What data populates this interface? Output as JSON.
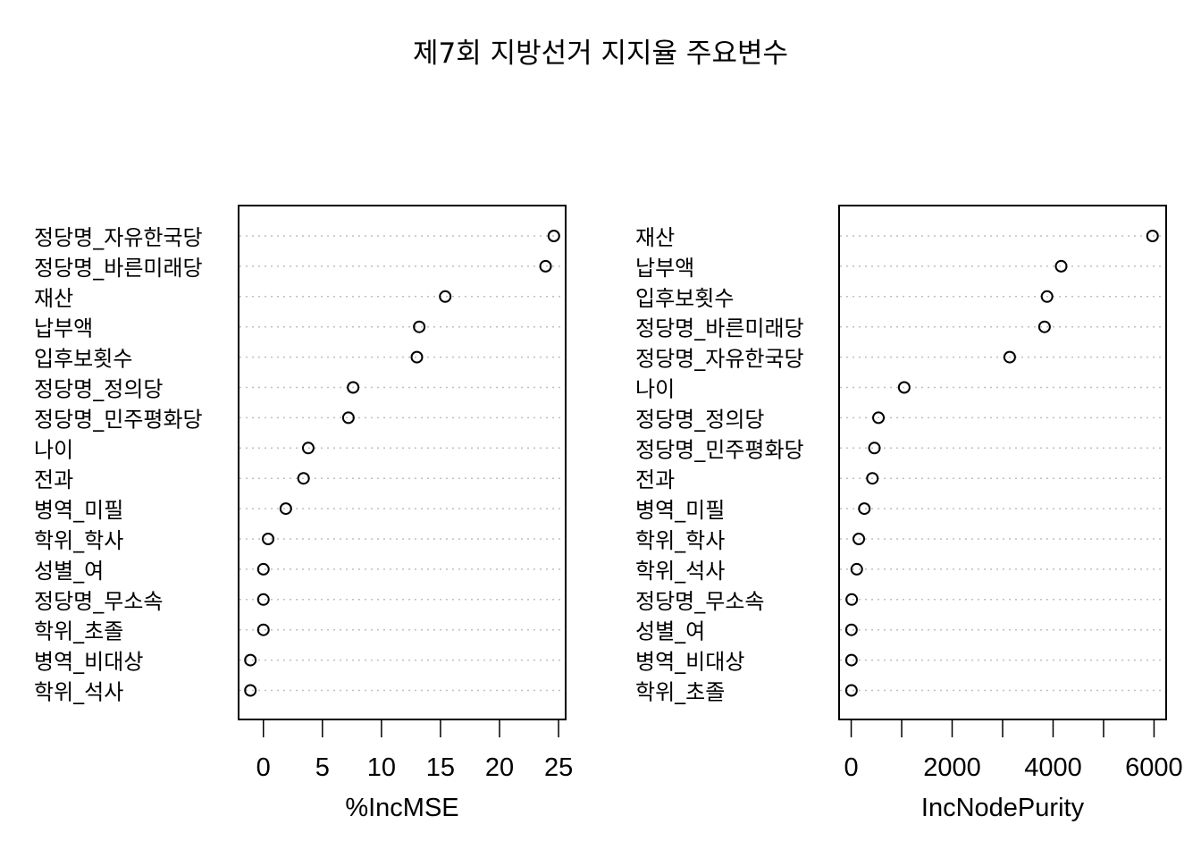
{
  "title": "제7회 지방선거 지지율 주요변수",
  "chart_data": [
    {
      "type": "dotchart",
      "xlabel": "%IncMSE",
      "xticks": [
        0,
        5,
        10,
        15,
        20,
        25
      ],
      "xlim": [
        -2.1,
        25.6
      ],
      "categories": [
        "정당명_자유한국당",
        "정당명_바른미래당",
        "재산",
        "납부액",
        "입후보횟수",
        "정당명_정의당",
        "정당명_민주평화당",
        "나이",
        "전과",
        "병역_미필",
        "학위_학사",
        "성별_여",
        "정당명_무소속",
        "학위_초졸",
        "병역_비대상",
        "학위_석사"
      ],
      "values": [
        24.6,
        23.9,
        15.4,
        13.2,
        13.0,
        7.6,
        7.2,
        3.8,
        3.4,
        1.9,
        0.4,
        0.0,
        0.0,
        0.0,
        -1.1,
        -1.1
      ],
      "grid": "dotted horizontal"
    },
    {
      "type": "dotchart",
      "xlabel": "IncNodePurity",
      "xticks": [
        0,
        2000,
        4000,
        6000
      ],
      "minor_ticks": [
        1000,
        3000,
        5000
      ],
      "xlim": [
        -240,
        6240
      ],
      "categories": [
        "재산",
        "납부액",
        "입후보횟수",
        "정당명_바른미래당",
        "정당명_자유한국당",
        "나이",
        "정당명_정의당",
        "정당명_민주평화당",
        "전과",
        "병역_미필",
        "학위_학사",
        "학위_석사",
        "정당명_무소속",
        "성별_여",
        "병역_비대상",
        "학위_초졸"
      ],
      "values": [
        5970,
        4160,
        3880,
        3830,
        3140,
        1050,
        540,
        460,
        420,
        260,
        150,
        110,
        10,
        5,
        5,
        5
      ],
      "grid": "dotted horizontal"
    }
  ]
}
